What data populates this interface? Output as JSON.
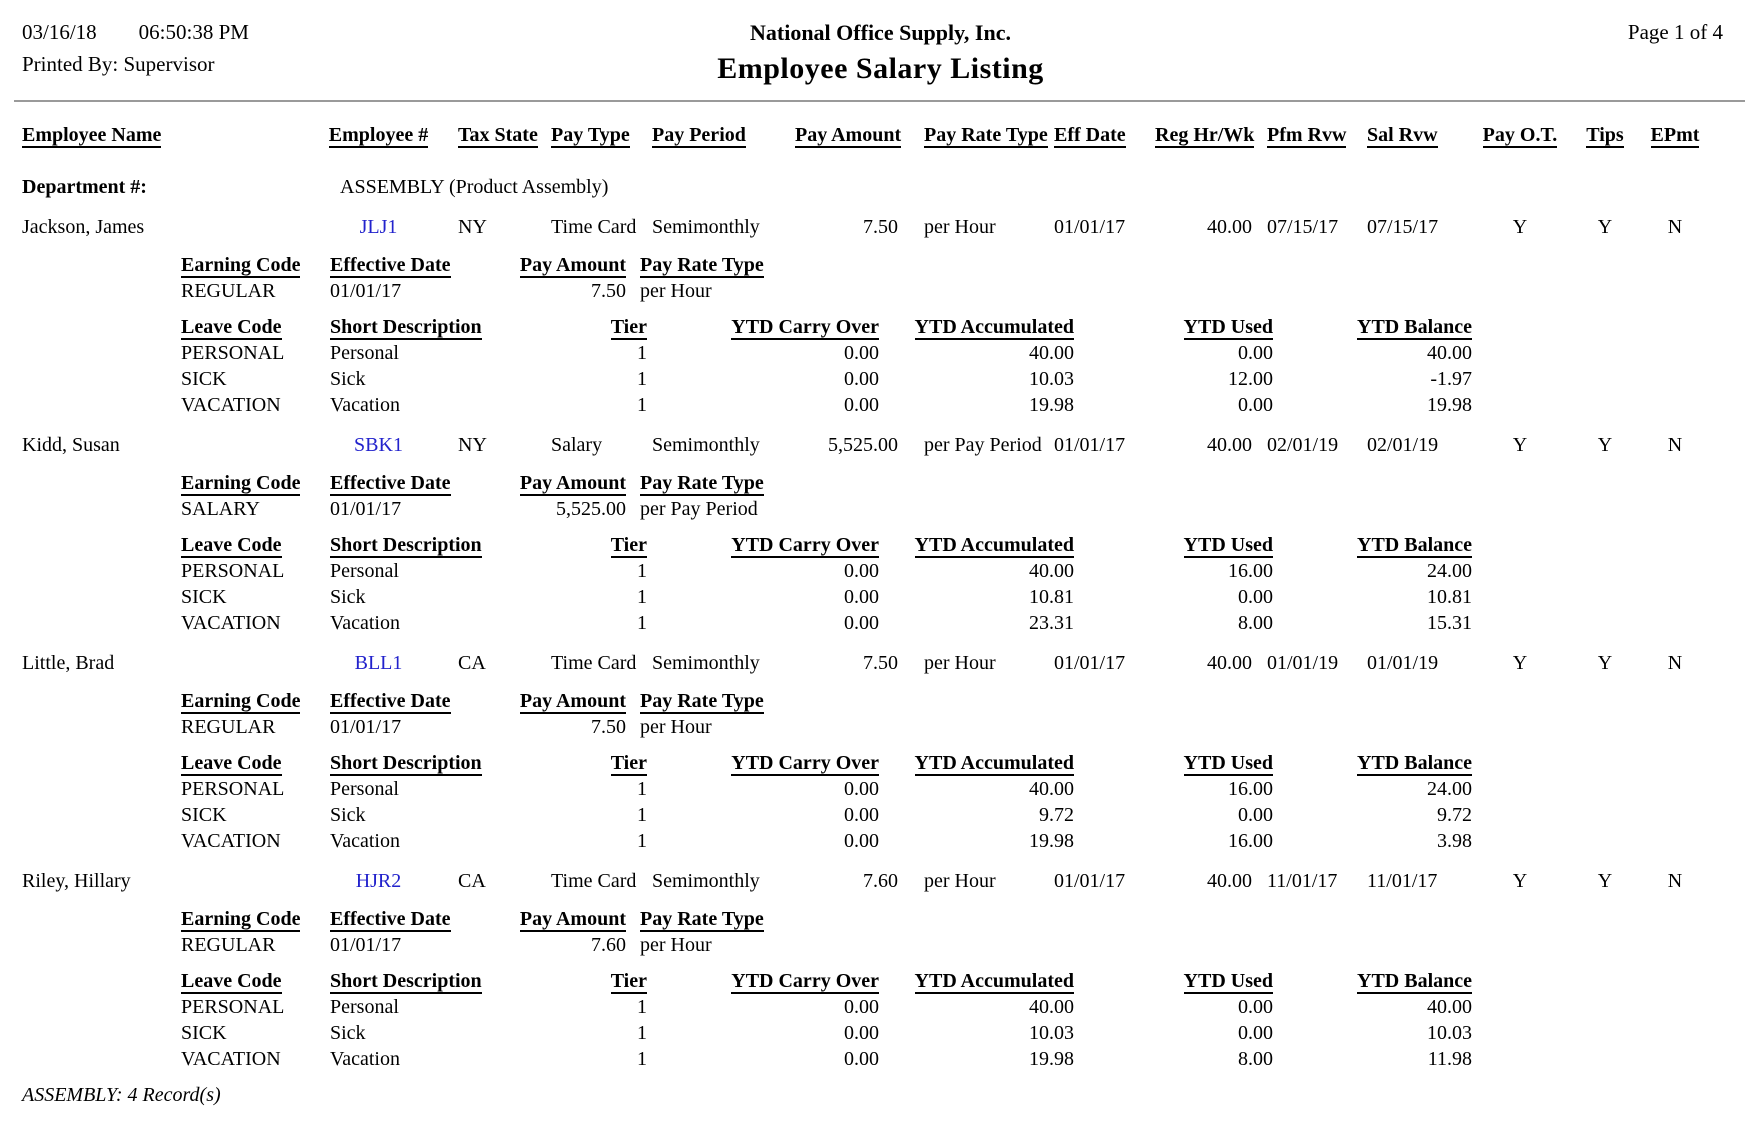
{
  "report": {
    "print_date": "03/16/18",
    "print_time": "06:50:38 PM",
    "printed_by": "Printed By: Supervisor",
    "company": "National Office Supply, Inc.",
    "title": "Employee Salary Listing",
    "page": "Page 1 of  4"
  },
  "colors": {
    "link_blue": "#2222cc",
    "rule_gray": "#9a9a9a"
  },
  "columns": {
    "main": [
      "Employee Name",
      "Employee #",
      "Tax State",
      "Pay Type",
      "Pay Period",
      "Pay Amount",
      "Pay Rate Type",
      "Eff Date",
      "Reg Hr/Wk",
      "Pfm Rvw",
      "Sal Rvw",
      "Pay O.T.",
      "Tips",
      "EPmt"
    ],
    "earnings": [
      "Earning Code",
      "Effective Date",
      "Pay Amount",
      "Pay Rate Type"
    ],
    "leave": [
      "Leave Code",
      "Short Description",
      "Tier",
      "YTD Carry Over",
      "YTD Accumulated",
      "YTD Used",
      "YTD Balance"
    ]
  },
  "department": {
    "label": "Department #:",
    "name": "ASSEMBLY (Product Assembly)"
  },
  "employees": [
    {
      "name": "Jackson, James",
      "number": "JLJ1",
      "tax_state": "NY",
      "pay_type": "Time Card",
      "pay_period": "Semimonthly",
      "pay_amount": "7.50",
      "pay_rate_type": "per Hour",
      "eff_date": "01/01/17",
      "reg_hr_wk": "40.00",
      "pfm_rvw": "07/15/17",
      "sal_rvw": "07/15/17",
      "pay_ot": "Y",
      "tips": "Y",
      "epmt": "N",
      "earnings": [
        {
          "code": "REGULAR",
          "effective_date": "01/01/17",
          "pay_amount": "7.50",
          "pay_rate_type": "per Hour"
        }
      ],
      "leave": [
        {
          "code": "PERSONAL",
          "description": "Personal",
          "tier": "1",
          "ytd_carry_over": "0.00",
          "ytd_accumulated": "40.00",
          "ytd_used": "0.00",
          "ytd_balance": "40.00"
        },
        {
          "code": "SICK",
          "description": "Sick",
          "tier": "1",
          "ytd_carry_over": "0.00",
          "ytd_accumulated": "10.03",
          "ytd_used": "12.00",
          "ytd_balance": "-1.97"
        },
        {
          "code": "VACATION",
          "description": "Vacation",
          "tier": "1",
          "ytd_carry_over": "0.00",
          "ytd_accumulated": "19.98",
          "ytd_used": "0.00",
          "ytd_balance": "19.98"
        }
      ]
    },
    {
      "name": "Kidd, Susan",
      "number": "SBK1",
      "tax_state": "NY",
      "pay_type": "Salary",
      "pay_period": "Semimonthly",
      "pay_amount": "5,525.00",
      "pay_rate_type": "per Pay Period",
      "eff_date": "01/01/17",
      "reg_hr_wk": "40.00",
      "pfm_rvw": "02/01/19",
      "sal_rvw": "02/01/19",
      "pay_ot": "Y",
      "tips": "Y",
      "epmt": "N",
      "earnings": [
        {
          "code": "SALARY",
          "effective_date": "01/01/17",
          "pay_amount": "5,525.00",
          "pay_rate_type": "per Pay Period"
        }
      ],
      "leave": [
        {
          "code": "PERSONAL",
          "description": "Personal",
          "tier": "1",
          "ytd_carry_over": "0.00",
          "ytd_accumulated": "40.00",
          "ytd_used": "16.00",
          "ytd_balance": "24.00"
        },
        {
          "code": "SICK",
          "description": "Sick",
          "tier": "1",
          "ytd_carry_over": "0.00",
          "ytd_accumulated": "10.81",
          "ytd_used": "0.00",
          "ytd_balance": "10.81"
        },
        {
          "code": "VACATION",
          "description": "Vacation",
          "tier": "1",
          "ytd_carry_over": "0.00",
          "ytd_accumulated": "23.31",
          "ytd_used": "8.00",
          "ytd_balance": "15.31"
        }
      ]
    },
    {
      "name": "Little, Brad",
      "number": "BLL1",
      "tax_state": "CA",
      "pay_type": "Time Card",
      "pay_period": "Semimonthly",
      "pay_amount": "7.50",
      "pay_rate_type": "per Hour",
      "eff_date": "01/01/17",
      "reg_hr_wk": "40.00",
      "pfm_rvw": "01/01/19",
      "sal_rvw": "01/01/19",
      "pay_ot": "Y",
      "tips": "Y",
      "epmt": "N",
      "earnings": [
        {
          "code": "REGULAR",
          "effective_date": "01/01/17",
          "pay_amount": "7.50",
          "pay_rate_type": "per Hour"
        }
      ],
      "leave": [
        {
          "code": "PERSONAL",
          "description": "Personal",
          "tier": "1",
          "ytd_carry_over": "0.00",
          "ytd_accumulated": "40.00",
          "ytd_used": "16.00",
          "ytd_balance": "24.00"
        },
        {
          "code": "SICK",
          "description": "Sick",
          "tier": "1",
          "ytd_carry_over": "0.00",
          "ytd_accumulated": "9.72",
          "ytd_used": "0.00",
          "ytd_balance": "9.72"
        },
        {
          "code": "VACATION",
          "description": "Vacation",
          "tier": "1",
          "ytd_carry_over": "0.00",
          "ytd_accumulated": "19.98",
          "ytd_used": "16.00",
          "ytd_balance": "3.98"
        }
      ]
    },
    {
      "name": "Riley, Hillary",
      "number": "HJR2",
      "tax_state": "CA",
      "pay_type": "Time Card",
      "pay_period": "Semimonthly",
      "pay_amount": "7.60",
      "pay_rate_type": "per Hour",
      "eff_date": "01/01/17",
      "reg_hr_wk": "40.00",
      "pfm_rvw": "11/01/17",
      "sal_rvw": "11/01/17",
      "pay_ot": "Y",
      "tips": "Y",
      "epmt": "N",
      "earnings": [
        {
          "code": "REGULAR",
          "effective_date": "01/01/17",
          "pay_amount": "7.60",
          "pay_rate_type": "per Hour"
        }
      ],
      "leave": [
        {
          "code": "PERSONAL",
          "description": "Personal",
          "tier": "1",
          "ytd_carry_over": "0.00",
          "ytd_accumulated": "40.00",
          "ytd_used": "0.00",
          "ytd_balance": "40.00"
        },
        {
          "code": "SICK",
          "description": "Sick",
          "tier": "1",
          "ytd_carry_over": "0.00",
          "ytd_accumulated": "10.03",
          "ytd_used": "0.00",
          "ytd_balance": "10.03"
        },
        {
          "code": "VACATION",
          "description": "Vacation",
          "tier": "1",
          "ytd_carry_over": "0.00",
          "ytd_accumulated": "19.98",
          "ytd_used": "8.00",
          "ytd_balance": "11.98"
        }
      ]
    }
  ],
  "footer": {
    "summary": "ASSEMBLY: 4 Record(s)"
  }
}
